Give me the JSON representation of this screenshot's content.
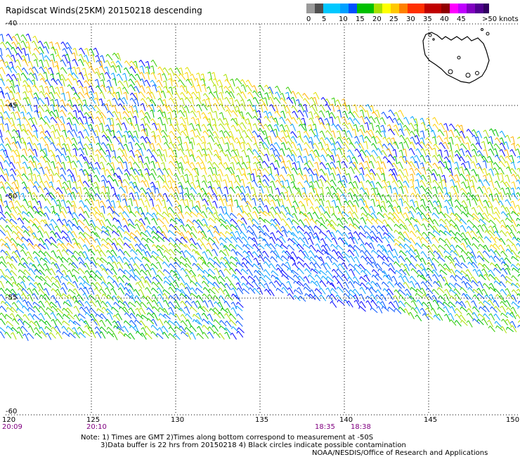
{
  "title": "Rapidscat Winds(25KM) 20150218 descending",
  "colorbar": {
    "colors": [
      "#505050",
      "#9a9a9a",
      "#00c8ff",
      "#00a0ff",
      "#0050ff",
      "#00c000",
      "#a8e000",
      "#ffff00",
      "#ffc800",
      "#ff8000",
      "#ff3000",
      "#c00000",
      "#900000",
      "#ff00ff",
      "#c000ff",
      "#8000c0",
      "#500090",
      "#300060"
    ],
    "labels": [
      "0",
      "5",
      "10",
      "15",
      "20",
      "25",
      "30",
      "35",
      "40",
      "45",
      ">50 knots"
    ]
  },
  "lat_labels": [
    "-40",
    "-45",
    "-50",
    "-55",
    "-60"
  ],
  "lon_labels": [
    "120",
    "125",
    "130",
    "135",
    "140",
    "145",
    "150"
  ],
  "time_labels": [
    {
      "text": "20:09",
      "color": "#800080"
    },
    {
      "text": "20:10",
      "color": "#800080"
    },
    {
      "text": "18:35",
      "color": "#800080"
    },
    {
      "text": "18:38",
      "color": "#800080"
    }
  ],
  "notes": {
    "line1": "Note: 1) Times are GMT 2)Times along bottom correspond to measurement at -50S",
    "line2": "3)Data buffer is 22 hrs from 20150218 4) Black circles indicate possible contamination",
    "line3": "NOAA/NESDIS/Office of Research and Applications"
  },
  "inset_map": {
    "name": "Tasmania coastline"
  }
}
